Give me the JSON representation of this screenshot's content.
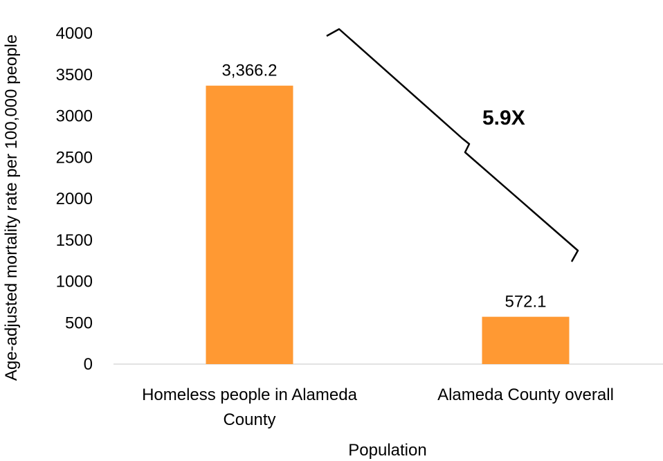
{
  "chart_data": {
    "type": "bar",
    "categories": [
      "Homeless people in Alameda County",
      "Alameda County overall"
    ],
    "category_label_lines": [
      [
        "Homeless people in Alameda",
        "County"
      ],
      [
        "Alameda County overall"
      ]
    ],
    "values": [
      3366.2,
      572.1
    ],
    "value_labels": [
      "3,366.2",
      "572.1"
    ],
    "title": "",
    "xlabel": "Population",
    "ylabel": "Age-adjusted mortality rate per 100,000 people",
    "ylim": [
      0,
      4000
    ],
    "yticks": [
      0,
      500,
      1000,
      1500,
      2000,
      2500,
      3000,
      3500,
      4000
    ],
    "grid": false,
    "legend": "none",
    "annotation": {
      "text": "5.9X",
      "type": "bracket"
    }
  },
  "colors": {
    "bar": "#FF9933",
    "axis": "#d9d9d9",
    "text": "#000000"
  }
}
